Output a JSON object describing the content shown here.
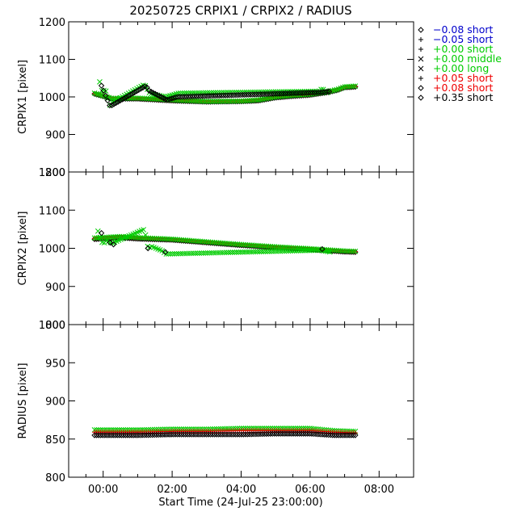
{
  "chart_data": {
    "type": "scatter",
    "title": "20250725 CRPIX1 / CRPIX2 / RADIUS",
    "xlabel": "Start Time (24-Jul-25 23:00:00)",
    "x_unit": "hours",
    "xlim": [
      -1.0,
      9.0
    ],
    "x_ticks": [
      {
        "value": 0,
        "label": "00:00"
      },
      {
        "value": 2,
        "label": "02:00"
      },
      {
        "value": 4,
        "label": "04:00"
      },
      {
        "value": 6,
        "label": "06:00"
      },
      {
        "value": 8,
        "label": "08:00"
      }
    ],
    "legend_position": "outside-top-right",
    "legend": [
      {
        "marker": "diamond",
        "color": "#0000cc",
        "label": "−0.08 short"
      },
      {
        "marker": "plus",
        "color": "#0000cc",
        "label": "−0.05 short"
      },
      {
        "marker": "plus",
        "color": "#00cc00",
        "label": "+0.00 short"
      },
      {
        "marker": "cross",
        "color": "#00cc00",
        "label": "+0.00 middle"
      },
      {
        "marker": "cross",
        "color": "#00cc00",
        "label": "+0.00 long"
      },
      {
        "marker": "plus",
        "color": "#ee0000",
        "label": "+0.05 short"
      },
      {
        "marker": "diamond",
        "color": "#ee0000",
        "label": "+0.08 short"
      },
      {
        "marker": "diamond",
        "color": "#000000",
        "label": "+0.35 short"
      }
    ],
    "panels": [
      {
        "ylabel": "CRPIX1 [pixel]",
        "ylim": [
          800,
          1200
        ],
        "y_ticks": [
          800,
          900,
          1000,
          1100,
          1200
        ],
        "series": [
          {
            "marker": "diamond",
            "color": "#000000",
            "x": [
              -0.25,
              0.25,
              1.0,
              2.0,
              3.0,
              4.0,
              4.5,
              5.0,
              5.5,
              6.0,
              6.5,
              6.8,
              7.0,
              7.35
            ],
            "y": [
              1008,
              995,
              995,
              990,
              987,
              988,
              990,
              998,
              1002,
              1005,
              1012,
              1018,
              1025,
              1027
            ]
          },
          {
            "marker": "plus",
            "color": "#ee0000",
            "x": [
              -0.25,
              0.25,
              1.0,
              2.0,
              3.0,
              4.0,
              4.5,
              5.0,
              5.5,
              6.0,
              6.5,
              6.8,
              7.0,
              7.35
            ],
            "y": [
              1009,
              997,
              996,
              991,
              988,
              989,
              991,
              999,
              1003,
              1006,
              1013,
              1019,
              1026,
              1028
            ]
          },
          {
            "marker": "cross",
            "color": "#00cc00",
            "x": [
              -0.25,
              0.25,
              1.0,
              2.0,
              3.0,
              4.0,
              4.5,
              5.0,
              5.5,
              6.0,
              6.5,
              6.8,
              7.0,
              7.35
            ],
            "y": [
              1010,
              996,
              997,
              992,
              988,
              989,
              992,
              1000,
              1004,
              1007,
              1014,
              1020,
              1027,
              1029
            ]
          },
          {
            "marker": "cross",
            "color": "#00cc00",
            "x": [
              -0.1,
              -0.05,
              0.0,
              0.05,
              0.2,
              0.25,
              1.2,
              1.25,
              1.35,
              1.8,
              2.2,
              6.25,
              6.35,
              6.55
            ],
            "y": [
              1040,
              1018,
              1012,
              1025,
              978,
              985,
              1033,
              1025,
              1010,
              1000,
              1010,
              1015,
              1022,
              1008
            ]
          },
          {
            "marker": "diamond",
            "color": "#000000",
            "x": [
              -0.05,
              0.2,
              0.3,
              1.25,
              1.3,
              1.85,
              2.15,
              6.3,
              6.6
            ],
            "y": [
              1030,
              975,
              980,
              1030,
              1018,
              992,
              1000,
              1012,
              1015
            ]
          }
        ]
      },
      {
        "ylabel": "CRPIX2 [pixel]",
        "ylim": [
          800,
          1200
        ],
        "y_ticks": [
          800,
          900,
          1000,
          1100,
          1200
        ],
        "series": [
          {
            "marker": "diamond",
            "color": "#000000",
            "x": [
              -0.25,
              0.5,
              1.0,
              2.0,
              3.0,
              4.0,
              5.0,
              6.0,
              6.5,
              7.0,
              7.35
            ],
            "y": [
              1024,
              1028,
              1025,
              1022,
              1015,
              1008,
              1002,
              997,
              994,
              991,
              990
            ]
          },
          {
            "marker": "plus",
            "color": "#ee0000",
            "x": [
              -0.25,
              0.5,
              1.0,
              2.0,
              3.0,
              4.0,
              5.0,
              6.0,
              6.5,
              7.0,
              7.35
            ],
            "y": [
              1026,
              1030,
              1027,
              1023,
              1016,
              1009,
              1003,
              998,
              995,
              992,
              991
            ]
          },
          {
            "marker": "cross",
            "color": "#00cc00",
            "x": [
              -0.25,
              0.5,
              1.0,
              2.0,
              3.0,
              4.0,
              5.0,
              6.0,
              6.5,
              7.0,
              7.35
            ],
            "y": [
              1027,
              1031,
              1028,
              1024,
              1017,
              1010,
              1004,
              999,
              996,
              993,
              992
            ]
          },
          {
            "marker": "cross",
            "color": "#00cc00",
            "x": [
              -0.15,
              -0.05,
              0.0,
              0.1,
              0.25,
              1.2,
              1.3,
              1.4,
              1.75,
              1.8,
              6.3,
              6.6
            ],
            "y": [
              1045,
              1018,
              1012,
              1020,
              1013,
              1050,
              1000,
              1005,
              992,
              985,
              995,
              990
            ]
          },
          {
            "marker": "diamond",
            "color": "#000000",
            "x": [
              -0.05,
              0.2,
              0.3,
              1.3,
              1.8,
              6.35
            ],
            "y": [
              1040,
              1015,
              1010,
              1000,
              990,
              998
            ]
          }
        ]
      },
      {
        "ylabel": "RADIUS [pixel]",
        "ylim": [
          800,
          1000
        ],
        "y_ticks": [
          800,
          850,
          900,
          950,
          1000
        ],
        "series": [
          {
            "marker": "cross",
            "color": "#00cc00",
            "x": [
              -0.25,
              1.0,
              2.0,
              3.0,
              4.0,
              5.0,
              6.0,
              6.7,
              7.35
            ],
            "y": [
              862,
              862,
              863,
              863,
              864,
              864,
              864,
              861,
              860
            ]
          },
          {
            "marker": "plus",
            "color": "#ee0000",
            "x": [
              -0.25,
              1.0,
              2.0,
              3.0,
              4.0,
              5.0,
              6.0,
              6.7,
              7.35
            ],
            "y": [
              859,
              859,
              860,
              860,
              861,
              861,
              861,
              859,
              858
            ]
          },
          {
            "marker": "diamond",
            "color": "#000000",
            "x": [
              -0.25,
              1.0,
              2.0,
              3.0,
              4.0,
              5.0,
              6.0,
              6.7,
              7.35
            ],
            "y": [
              855,
              855,
              856,
              856,
              856,
              857,
              857,
              855,
              855
            ]
          }
        ]
      }
    ]
  }
}
